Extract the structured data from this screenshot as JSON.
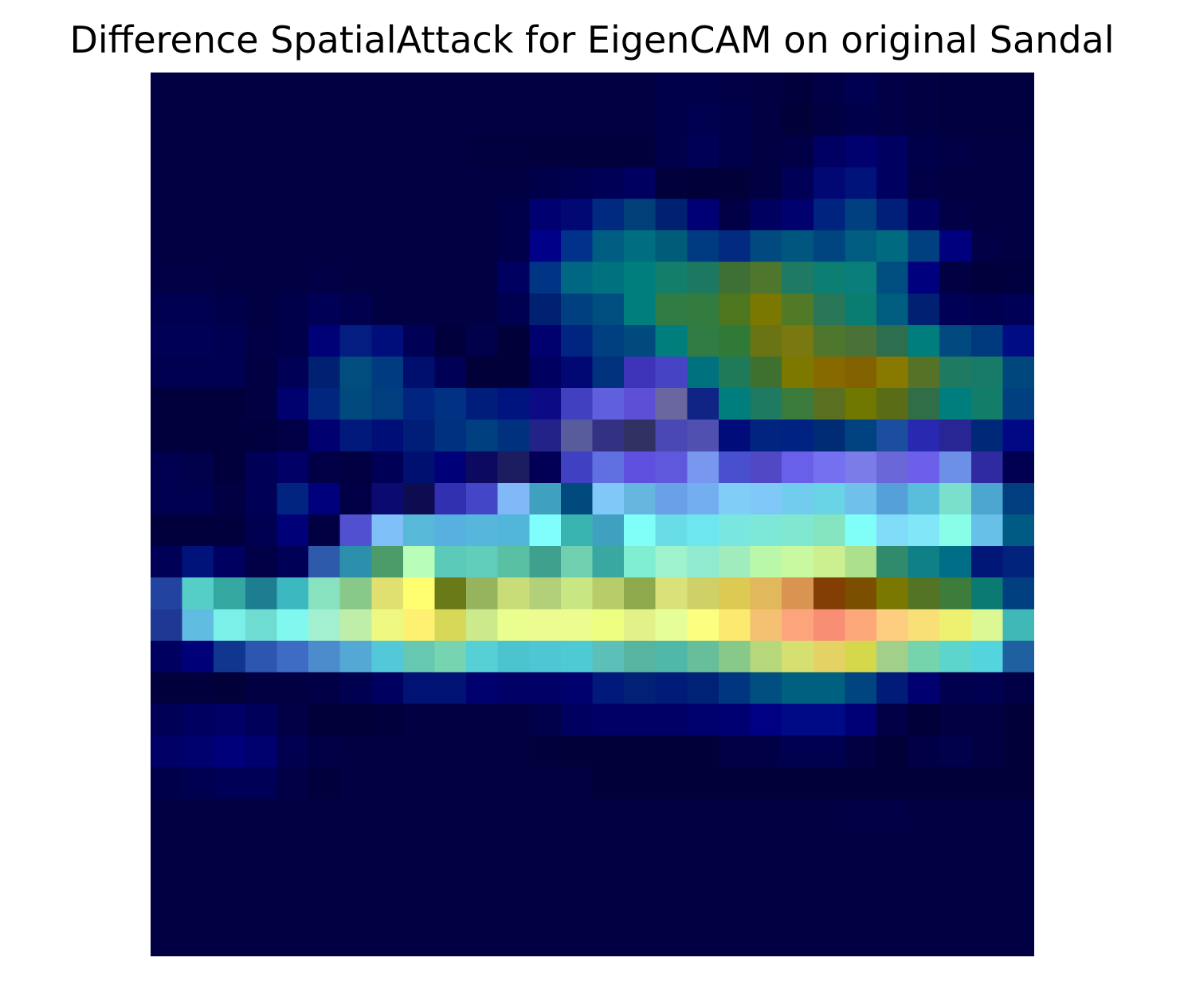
{
  "chart_data": {
    "type": "heatmap",
    "title": "Difference SpatialAttack for EigenCAM on original Sandal",
    "xlabel": "",
    "ylabel": "",
    "axes_visible": false,
    "colormap": "jet overlaid on dark grayscale image",
    "rows": 28,
    "cols": 28,
    "cells": [
      [
        "#010042",
        "#010042",
        "#010042",
        "#010042",
        "#010042",
        "#010042",
        "#010042",
        "#010042",
        "#010042",
        "#010042",
        "#010042",
        "#010042",
        "#010042",
        "#010042",
        "#010042",
        "#010042",
        "#00004a",
        "#00004a",
        "#010046",
        "#010042",
        "#01003c",
        "#010046",
        "#000050",
        "#010046",
        "#010042",
        "#00003e",
        "#00003e",
        "#00003e"
      ],
      [
        "#010042",
        "#010042",
        "#010042",
        "#010042",
        "#010042",
        "#010042",
        "#010042",
        "#010042",
        "#010042",
        "#010042",
        "#010042",
        "#010042",
        "#010042",
        "#010042",
        "#010042",
        "#010042",
        "#00004a",
        "#000050",
        "#00004a",
        "#010042",
        "#010039",
        "#010042",
        "#00004a",
        "#010046",
        "#010042",
        "#00003e",
        "#00003e",
        "#00003e"
      ],
      [
        "#010042",
        "#010042",
        "#010042",
        "#010042",
        "#010042",
        "#010042",
        "#010042",
        "#010042",
        "#010042",
        "#010042",
        "#00003e",
        "#00003e",
        "#01003c",
        "#01003c",
        "#01003c",
        "#01003c",
        "#00004a",
        "#000056",
        "#00004a",
        "#010042",
        "#010046",
        "#000062",
        "#00006e",
        "#000060",
        "#00004a",
        "#010046",
        "#010042",
        "#010042"
      ],
      [
        "#010042",
        "#010042",
        "#010042",
        "#010042",
        "#010042",
        "#010042",
        "#010042",
        "#010042",
        "#010042",
        "#010042",
        "#010042",
        "#010042",
        "#00004a",
        "#000050",
        "#000056",
        "#000060",
        "#01003c",
        "#010038",
        "#010039",
        "#010042",
        "#000056",
        "#010874",
        "#00137a",
        "#000060",
        "#010046",
        "#010042",
        "#010042",
        "#010042"
      ],
      [
        "#010042",
        "#010042",
        "#010042",
        "#010042",
        "#010042",
        "#010042",
        "#010042",
        "#010042",
        "#010042",
        "#010042",
        "#010042",
        "#00004a",
        "#010070",
        "#010874",
        "#002980",
        "#003f78",
        "#002172",
        "#000074",
        "#010046",
        "#000060",
        "#00006e",
        "#012380",
        "#003f80",
        "#001f78",
        "#000060",
        "#010046",
        "#010042",
        "#010042"
      ],
      [
        "#010042",
        "#010042",
        "#010042",
        "#010042",
        "#010042",
        "#010042",
        "#010042",
        "#010042",
        "#010042",
        "#010042",
        "#010042",
        "#00004a",
        "#000088",
        "#00328b",
        "#005d82",
        "#006e80",
        "#005c78",
        "#003a80",
        "#012a80",
        "#004a80",
        "#00567e",
        "#004480",
        "#005c80",
        "#006a80",
        "#003f80",
        "#00007e",
        "#010046",
        "#010042"
      ],
      [
        "#010046",
        "#010046",
        "#010042",
        "#010042",
        "#010042",
        "#010046",
        "#010042",
        "#010042",
        "#010042",
        "#010042",
        "#010042",
        "#000060",
        "#003484",
        "#006782",
        "#00717e",
        "#007e7e",
        "#137e6a",
        "#1c7860",
        "#3e7036",
        "#4e762c",
        "#1e7a62",
        "#0c7e72",
        "#097e7a",
        "#004e80",
        "#00007e",
        "#010042",
        "#01003c",
        "#00003e"
      ],
      [
        "#000050",
        "#000050",
        "#00004a",
        "#010042",
        "#00004a",
        "#000056",
        "#00004e",
        "#010042",
        "#010042",
        "#010042",
        "#010042",
        "#000050",
        "#002172",
        "#003f80",
        "#004e80",
        "#007e7e",
        "#307c44",
        "#327c40",
        "#4e761e",
        "#7a7800",
        "#507a26",
        "#2a7658",
        "#097e70",
        "#005d80",
        "#002172",
        "#000056",
        "#000050",
        "#000056"
      ],
      [
        "#000056",
        "#000056",
        "#000050",
        "#010046",
        "#00004a",
        "#000077",
        "#031e80",
        "#000e7c",
        "#000056",
        "#01003c",
        "#01004a",
        "#010039",
        "#00006e",
        "#002580",
        "#003f80",
        "#004a7e",
        "#007e7e",
        "#307c44",
        "#307a38",
        "#6a7414",
        "#7a7810",
        "#4e762c",
        "#4a7236",
        "#2c6e4e",
        "#007e7e",
        "#004a80",
        "#003a7e",
        "#000c84"
      ],
      [
        "#000050",
        "#000050",
        "#000050",
        "#010042",
        "#000056",
        "#002072",
        "#004d7e",
        "#003a80",
        "#000e6e",
        "#000056",
        "#010039",
        "#010039",
        "#000060",
        "#010874",
        "#00327e",
        "#3e34ba",
        "#4644c4",
        "#00717e",
        "#1e7a58",
        "#3e7030",
        "#7c7800",
        "#866a00",
        "#826200",
        "#887a00",
        "#567226",
        "#1e7a60",
        "#187a68",
        "#00477e"
      ],
      [
        "#01003c",
        "#01003c",
        "#01003c",
        "#010042",
        "#00006e",
        "#002680",
        "#004a7e",
        "#003e80",
        "#002480",
        "#003182",
        "#001d7c",
        "#001480",
        "#0d0a86",
        "#4040c0",
        "#6060de",
        "#5e50d6",
        "#6a66a0",
        "#0f2484",
        "#007e7e",
        "#1e7a60",
        "#3a7a3a",
        "#5a7020",
        "#707800",
        "#5a6c16",
        "#306e48",
        "#007e7e",
        "#127e6a",
        "#003f80"
      ],
      [
        "#01003c",
        "#01003c",
        "#01003c",
        "#01003e",
        "#010046",
        "#000070",
        "#00197a",
        "#000e78",
        "#001e78",
        "#003080",
        "#004080",
        "#00317e",
        "#232288",
        "#585c9c",
        "#333184",
        "#313164",
        "#4a48b4",
        "#5050b0",
        "#000c7a",
        "#002480",
        "#002282",
        "#002c76",
        "#014280",
        "#1c4ea0",
        "#2828b0",
        "#282694",
        "#002878",
        "#000884"
      ],
      [
        "#010050",
        "#01004a",
        "#01003c",
        "#000056",
        "#000066",
        "#010046",
        "#010042",
        "#000056",
        "#001070",
        "#000078",
        "#0c0a60",
        "#1c1c60",
        "#010056",
        "#4040c2",
        "#6070e0",
        "#6050e0",
        "#6058dc",
        "#7898f0",
        "#4850d0",
        "#5048c4",
        "#6860e8",
        "#7470f0",
        "#7c7ce8",
        "#6a68d8",
        "#6c60ea",
        "#6c90e6",
        "#302aa0",
        "#010050"
      ],
      [
        "#000050",
        "#000050",
        "#010042",
        "#000056",
        "#002480",
        "#00007c",
        "#010046",
        "#0a0a70",
        "#0e0c50",
        "#3030b0",
        "#4446c8",
        "#80b8f8",
        "#40a0c0",
        "#004a7e",
        "#80c8f8",
        "#66b6e0",
        "#6aa0e8",
        "#72aef0",
        "#80cef8",
        "#7fc8f8",
        "#72ccee",
        "#68d4e6",
        "#70c0ec",
        "#56a0da",
        "#58bedc",
        "#7ae0cc",
        "#4ca6d0",
        "#003e80"
      ],
      [
        "#01003c",
        "#01003c",
        "#01003c",
        "#000050",
        "#000078",
        "#010042",
        "#5050d0",
        "#80c0f8",
        "#58b8d8",
        "#58b0e0",
        "#56b6dc",
        "#52b6da",
        "#80fefe",
        "#3ab4b0",
        "#40a0c0",
        "#80fef8",
        "#68dde8",
        "#6ee6f0",
        "#7ae6e0",
        "#7ee8d8",
        "#80e8d0",
        "#84e4c0",
        "#80fef8",
        "#80dcf8",
        "#80e6f8",
        "#88fee8",
        "#66c0e8",
        "#005b84"
      ],
      [
        "#000056",
        "#00137a",
        "#000060",
        "#010046",
        "#000056",
        "#2e5aac",
        "#2c90ac",
        "#4c9c6a",
        "#b8feb8",
        "#5ccab8",
        "#60ceba",
        "#5ac0a4",
        "#40a08e",
        "#70d0b0",
        "#38a8a0",
        "#80eed0",
        "#9ef2cc",
        "#90ead0",
        "#a0ecbc",
        "#b8f8a8",
        "#c8f8a0",
        "#ccf090",
        "#ace08c",
        "#308a6c",
        "#0e8086",
        "#006e86",
        "#001778",
        "#01237c"
      ],
      [
        "#2244a0",
        "#56cec8",
        "#34a8a0",
        "#1c7e90",
        "#3cb8c0",
        "#88e2c0",
        "#88c888",
        "#e0e070",
        "#fefe70",
        "#6a7a18",
        "#96b45e",
        "#c8dc78",
        "#b2d07a",
        "#c8e682",
        "#b8cc6a",
        "#8ea84c",
        "#d8e278",
        "#d0d068",
        "#dcca52",
        "#e2b85c",
        "#d89450",
        "#823e04",
        "#7a5000",
        "#7a7800",
        "#527424",
        "#3e7c3c",
        "#0b7a72",
        "#014080"
      ],
      [
        "#1e3894",
        "#60bce0",
        "#7af0e8",
        "#6edcd0",
        "#80f8f0",
        "#a2f0d0",
        "#beeea8",
        "#eef880",
        "#fef070",
        "#d8d858",
        "#ccea8c",
        "#eafe90",
        "#ecfc90",
        "#ecfc8e",
        "#eefe80",
        "#e2f288",
        "#e6fe98",
        "#fcfe80",
        "#fcea70",
        "#f4c072",
        "#fca47c",
        "#f88e74",
        "#fca87a",
        "#fece80",
        "#f8e076",
        "#eef070",
        "#dcf894",
        "#40b8b8"
      ],
      [
        "#000060",
        "#000078",
        "#113690",
        "#2d56b0",
        "#3e6cc4",
        "#4c8ccc",
        "#54a8d4",
        "#52c8d8",
        "#66c8b0",
        "#76d4b0",
        "#56d0d4",
        "#4cc4d0",
        "#4ec6d4",
        "#4ecad4",
        "#5cc0b8",
        "#56b4a0",
        "#50b8a8",
        "#66be9a",
        "#88c888",
        "#b6d87a",
        "#d6e070",
        "#e4d264",
        "#d6d84c",
        "#a2d08a",
        "#76d4ac",
        "#5cd6cc",
        "#54d4dc",
        "#1e60a0"
      ],
      [
        "#01003c",
        "#01003c",
        "#010039",
        "#010042",
        "#010042",
        "#010046",
        "#000050",
        "#000060",
        "#001274",
        "#001274",
        "#00006e",
        "#000066",
        "#000066",
        "#00006e",
        "#00197a",
        "#002176",
        "#001b78",
        "#002276",
        "#003680",
        "#004f80",
        "#006080",
        "#006080",
        "#004480",
        "#001b78",
        "#000070",
        "#00004e",
        "#000050",
        "#010046"
      ],
      [
        "#000056",
        "#000060",
        "#000066",
        "#00005a",
        "#010046",
        "#010039",
        "#010039",
        "#01003c",
        "#010042",
        "#010042",
        "#010042",
        "#010042",
        "#01004a",
        "#000060",
        "#000066",
        "#000066",
        "#000066",
        "#00006e",
        "#000072",
        "#000084",
        "#000a86",
        "#000a86",
        "#000074",
        "#010046",
        "#010039",
        "#010042",
        "#010042",
        "#010039"
      ],
      [
        "#000066",
        "#00006e",
        "#00007a",
        "#00006e",
        "#010050",
        "#010046",
        "#010042",
        "#010042",
        "#010042",
        "#010042",
        "#010042",
        "#010042",
        "#01003c",
        "#010039",
        "#010039",
        "#010039",
        "#010039",
        "#010039",
        "#010046",
        "#010046",
        "#000050",
        "#000050",
        "#010042",
        "#010039",
        "#010046",
        "#01004a",
        "#010042",
        "#010039"
      ],
      [
        "#00004a",
        "#000050",
        "#000056",
        "#000056",
        "#010046",
        "#01003c",
        "#010042",
        "#010042",
        "#010042",
        "#010042",
        "#010042",
        "#010042",
        "#010042",
        "#010042",
        "#010039",
        "#010039",
        "#010039",
        "#010039",
        "#010039",
        "#010039",
        "#010039",
        "#010039",
        "#010039",
        "#010039",
        "#010039",
        "#010039",
        "#010039",
        "#010039"
      ],
      [
        "#010042",
        "#010042",
        "#010042",
        "#010042",
        "#010042",
        "#010042",
        "#010042",
        "#010042",
        "#010042",
        "#010042",
        "#010042",
        "#010042",
        "#010042",
        "#010042",
        "#010042",
        "#010042",
        "#010042",
        "#010042",
        "#010042",
        "#010042",
        "#010042",
        "#010042",
        "#010046",
        "#010046",
        "#010042",
        "#010042",
        "#010042",
        "#010042"
      ],
      [
        "#010042",
        "#010042",
        "#010042",
        "#010042",
        "#010042",
        "#010042",
        "#010042",
        "#010042",
        "#010042",
        "#010042",
        "#010042",
        "#010042",
        "#010042",
        "#010042",
        "#010042",
        "#010042",
        "#010042",
        "#010042",
        "#010042",
        "#010042",
        "#010042",
        "#010042",
        "#010042",
        "#010042",
        "#010042",
        "#010042",
        "#010042",
        "#010042"
      ],
      [
        "#010042",
        "#010042",
        "#010042",
        "#010042",
        "#010042",
        "#010042",
        "#010042",
        "#010042",
        "#010042",
        "#010042",
        "#010042",
        "#010042",
        "#010042",
        "#010042",
        "#010042",
        "#010042",
        "#010042",
        "#010042",
        "#010042",
        "#010042",
        "#010042",
        "#010042",
        "#010042",
        "#010042",
        "#010042",
        "#010042",
        "#010042",
        "#010042"
      ],
      [
        "#010042",
        "#010042",
        "#010042",
        "#010042",
        "#010042",
        "#010042",
        "#010042",
        "#010042",
        "#010042",
        "#010042",
        "#010042",
        "#010042",
        "#010042",
        "#010042",
        "#010042",
        "#010042",
        "#010042",
        "#010042",
        "#010042",
        "#010042",
        "#010042",
        "#010042",
        "#010042",
        "#010042",
        "#010042",
        "#010042",
        "#010042",
        "#010042"
      ],
      [
        "#010042",
        "#010042",
        "#010042",
        "#010042",
        "#010042",
        "#010042",
        "#010042",
        "#010042",
        "#010042",
        "#010042",
        "#010042",
        "#010042",
        "#010042",
        "#010042",
        "#010042",
        "#010042",
        "#010042",
        "#010042",
        "#010042",
        "#010042",
        "#010042",
        "#010042",
        "#010042",
        "#010042",
        "#010042",
        "#010042",
        "#010042",
        "#010042"
      ]
    ]
  }
}
